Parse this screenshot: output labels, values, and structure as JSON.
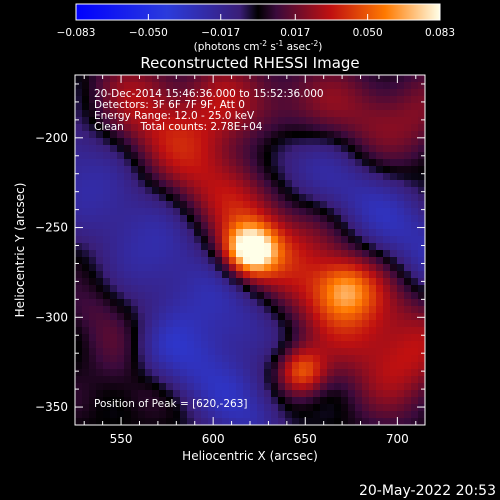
{
  "chart_data": {
    "type": "heatmap",
    "title": "Reconstructed RHESSI Image",
    "xlabel": "Heliocentric X (arcsec)",
    "ylabel": "Heliocentric Y (arcsec)",
    "xlim": [
      525,
      715
    ],
    "ylim": [
      -360,
      -165
    ],
    "x_ticks": [
      550,
      600,
      650,
      700
    ],
    "y_ticks": [
      -200,
      -250,
      -300,
      -350
    ],
    "colorbar": {
      "ticks": [
        "-0.083",
        "-0.050",
        "-0.017",
        "0.017",
        "0.050",
        "0.083"
      ],
      "range": [
        -0.083,
        0.083
      ],
      "unit_label": "(photons cm",
      "unit_exp1": "-2",
      "unit_mid": " s",
      "unit_exp2": "-1",
      "unit_end": " asec",
      "unit_exp3": "-2",
      "unit_close": ")"
    },
    "annotations": [
      "20-Dec-2014 15:46:36.000 to 15:52:36.000",
      "Detectors: 3F 6F 7F 9F, Att 0",
      "Energy Range: 12.0 - 25.0 keV",
      "Clean     Total counts: 2.78E+04"
    ],
    "peak_label": "Position of Peak = [620,-263]",
    "peak": {
      "x": 620,
      "y": -263,
      "value": 0.083
    },
    "sources": [
      {
        "x": 620,
        "y": -263,
        "amp": 0.083,
        "sigma": 10
      },
      {
        "x": 648,
        "y": -330,
        "amp": 0.045,
        "sigma": 9
      },
      {
        "x": 672,
        "y": -285,
        "amp": 0.038,
        "sigma": 11
      }
    ],
    "ridges": [
      {
        "x0": 560,
        "y0": -190,
        "x1": 700,
        "y1": -320,
        "amp": 0.035,
        "width": 22
      },
      {
        "x0": 610,
        "y0": -180,
        "x1": 705,
        "y1": -190,
        "amp": 0.022,
        "width": 18
      },
      {
        "x0": 535,
        "y0": -300,
        "x1": 560,
        "y1": -340,
        "amp": 0.012,
        "width": 12
      }
    ],
    "troughs": [
      {
        "x0": 530,
        "y0": -210,
        "x1": 610,
        "y1": -300,
        "amp": -0.03,
        "width": 20
      },
      {
        "x0": 640,
        "y0": -210,
        "x1": 715,
        "y1": -260,
        "amp": -0.028,
        "width": 16
      },
      {
        "x0": 575,
        "y0": -320,
        "x1": 620,
        "y1": -355,
        "amp": -0.025,
        "width": 14
      }
    ]
  },
  "footer": {
    "timestamp": "20-May-2022 20:53"
  }
}
